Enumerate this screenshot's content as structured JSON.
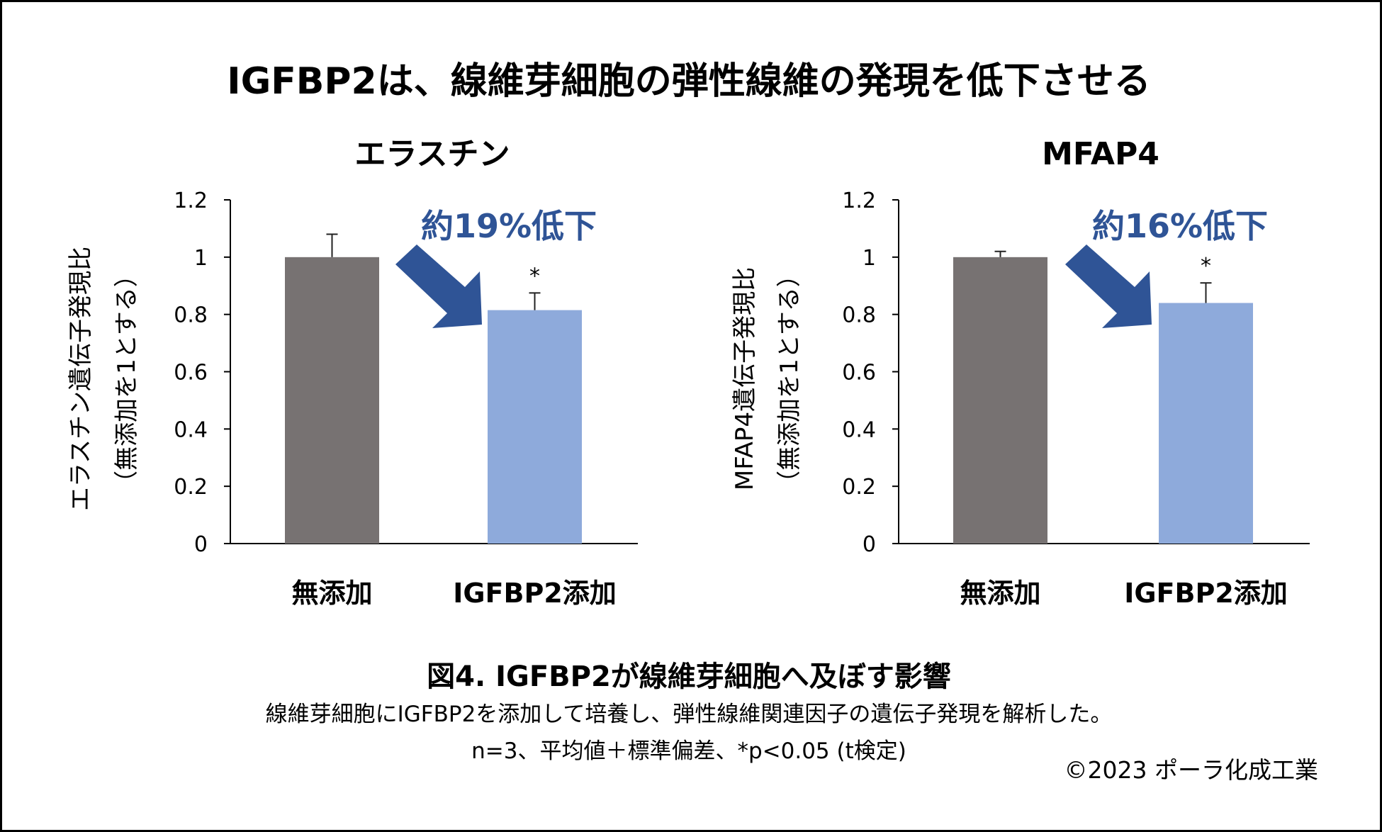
{
  "title": "IGFBP2は、線維芽細胞の弾性線維の発現を低下させる",
  "colors": {
    "control_bar": "#777272",
    "treated_bar": "#8eaadb",
    "arrow": "#2f5496",
    "annotation_text": "#2f5496"
  },
  "chart_data": [
    {
      "type": "bar",
      "title": "エラスチン",
      "ylabel_line1": "エラスチン遺伝子発現比",
      "ylabel_line2": "（無添加を1とする）",
      "ylim": [
        0,
        1.2
      ],
      "yticks": [
        "0",
        "0.2",
        "0.4",
        "0.6",
        "0.8",
        "1",
        "1.2"
      ],
      "ytick_values": [
        0,
        0.2,
        0.4,
        0.6,
        0.8,
        1,
        1.2
      ],
      "categories": [
        "無添加",
        "IGFBP2添加"
      ],
      "values": [
        1.0,
        0.815
      ],
      "error": [
        0.08,
        0.06
      ],
      "significance": [
        "",
        "*"
      ],
      "annotation": "約19%低下",
      "grid": false
    },
    {
      "type": "bar",
      "title": "MFAP4",
      "ylabel_line1": "MFAP4遺伝子発現比",
      "ylabel_line2": "（無添加を1とする）",
      "ylim": [
        0,
        1.2
      ],
      "yticks": [
        "0",
        "0.2",
        "0.4",
        "0.6",
        "0.8",
        "1",
        "1.2"
      ],
      "ytick_values": [
        0,
        0.2,
        0.4,
        0.6,
        0.8,
        1,
        1.2
      ],
      "categories": [
        "無添加",
        "IGFBP2添加"
      ],
      "values": [
        1.0,
        0.84
      ],
      "error": [
        0.02,
        0.07
      ],
      "significance": [
        "",
        "*"
      ],
      "annotation": "約16%低下",
      "grid": false
    }
  ],
  "caption": {
    "title": "図4. IGFBP2が線維芽細胞へ及ぼす影響",
    "line1": "線維芽細胞にIGFBP2を添加して培養し、弾性線維関連因子の遺伝子発現を解析した。",
    "line2": "n=3、平均値＋標準偏差、*p<0.05 (t検定)"
  },
  "copyright": "©2023 ポーラ化成工業"
}
